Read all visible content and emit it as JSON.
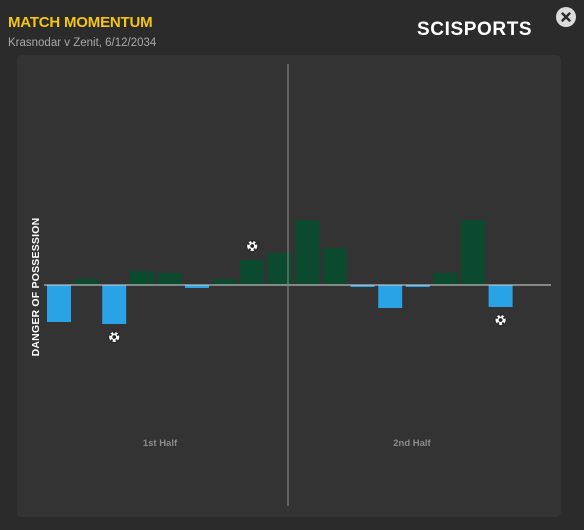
{
  "header": {
    "title": "MATCH MOMENTUM",
    "subtitle": "Krasnodar v Zenit, 6/12/2034",
    "brand": "SCISPORTS"
  },
  "icons": {
    "close": "close-icon",
    "goal": "football-icon"
  },
  "colors": {
    "title": "#f5c518",
    "positive": "#0b4a2e",
    "negative": "#29a3e6",
    "panel": "#333333",
    "background": "#2b2b2b"
  },
  "chart_data": {
    "type": "bar",
    "ylabel": "DANGER OF POSSESSION",
    "half_labels": [
      "1st Half",
      "2nd Half"
    ],
    "values": [
      -37,
      6,
      -39,
      14,
      12,
      -3,
      6,
      25,
      32,
      65,
      37,
      -2,
      -23,
      -2,
      12,
      65,
      -22
    ],
    "ylim": [
      -100,
      100
    ],
    "goals": [
      {
        "bar": 2,
        "side": "below"
      },
      {
        "bar": 7,
        "side": "above"
      },
      {
        "bar": 16,
        "side": "below"
      }
    ],
    "half_divider_after_bar": 8
  }
}
